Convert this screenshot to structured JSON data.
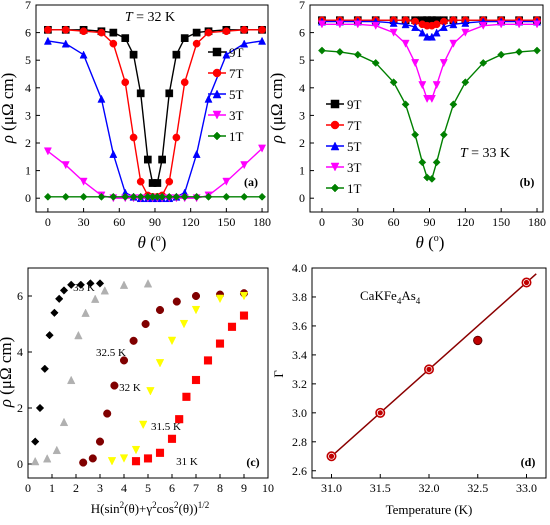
{
  "colors": {
    "9T": "#000000",
    "7T": "#ff0000",
    "5T": "#0000ff",
    "3T": "#ff00ff",
    "1T": "#008000",
    "fit_line": "#8b0000",
    "gamma_points": "#c00000"
  },
  "chart_data": [
    {
      "panel": "(a)",
      "type": "line",
      "title": "T = 32 K",
      "xlabel": "θ (o)",
      "ylabel": "ρ (μΩ cm)",
      "xlim": [
        -10,
        185
      ],
      "ylim": [
        -0.5,
        7
      ],
      "xticks": [
        "0",
        "30",
        "60",
        "90",
        "120",
        "150",
        "180"
      ],
      "yticks": [
        "0",
        "1",
        "2",
        "3",
        "4",
        "5",
        "6",
        "7"
      ],
      "legend_position": "right",
      "x": [
        0,
        15,
        30,
        45,
        55,
        65,
        72,
        78,
        84,
        88,
        92,
        96,
        102,
        108,
        115,
        125,
        135,
        150,
        165,
        180
      ],
      "series": [
        {
          "name": "9T",
          "marker": "square",
          "values": [
            6.1,
            6.1,
            6.1,
            6.05,
            6.0,
            5.8,
            5.2,
            3.8,
            1.4,
            0.55,
            0.55,
            1.4,
            3.8,
            5.2,
            5.8,
            6.0,
            6.05,
            6.1,
            6.1,
            6.1
          ]
        },
        {
          "name": "7T",
          "marker": "circle",
          "values": [
            6.1,
            6.1,
            6.05,
            6.0,
            5.6,
            4.2,
            2.2,
            0.6,
            0.1,
            0.05,
            0.05,
            0.1,
            0.6,
            2.2,
            4.2,
            5.6,
            6.0,
            6.05,
            6.1,
            6.1
          ]
        },
        {
          "name": "5T",
          "marker": "triangle-up",
          "values": [
            5.7,
            5.6,
            5.2,
            3.6,
            1.6,
            0.2,
            0.05,
            0.0,
            0.0,
            0.0,
            0.0,
            0.0,
            0.0,
            0.05,
            0.2,
            1.6,
            3.6,
            5.2,
            5.6,
            5.7
          ]
        },
        {
          "name": "3T",
          "marker": "triangle-down",
          "values": [
            1.7,
            1.2,
            0.6,
            0.1,
            0.0,
            0.0,
            0.0,
            0.0,
            0.0,
            0.0,
            0.0,
            0.0,
            0.0,
            0.0,
            0.0,
            0.0,
            0.1,
            0.6,
            1.2,
            1.8
          ]
        },
        {
          "name": "1T",
          "marker": "diamond",
          "values": [
            0.05,
            0.05,
            0.05,
            0.05,
            0.05,
            0.05,
            0.05,
            0.05,
            0.05,
            0.05,
            0.05,
            0.05,
            0.05,
            0.05,
            0.05,
            0.05,
            0.05,
            0.05,
            0.05,
            0.05
          ]
        }
      ]
    },
    {
      "panel": "(b)",
      "type": "line",
      "title": "T = 33 K",
      "xlabel": "θ (o)",
      "ylabel": "ρ (μΩ cm)",
      "xlim": [
        -10,
        185
      ],
      "ylim": [
        -0.5,
        7
      ],
      "xticks": [
        "0",
        "30",
        "60",
        "90",
        "120",
        "150",
        "180"
      ],
      "yticks": [
        "0",
        "1",
        "2",
        "3",
        "4",
        "5",
        "6",
        "7"
      ],
      "legend_position": "left",
      "x": [
        0,
        15,
        30,
        45,
        60,
        70,
        78,
        84,
        88,
        92,
        96,
        102,
        110,
        120,
        135,
        150,
        165,
        180
      ],
      "series": [
        {
          "name": "9T",
          "marker": "square",
          "values": [
            6.45,
            6.45,
            6.45,
            6.45,
            6.45,
            6.45,
            6.45,
            6.45,
            6.45,
            6.45,
            6.45,
            6.45,
            6.45,
            6.45,
            6.45,
            6.45,
            6.45,
            6.45
          ]
        },
        {
          "name": "7T",
          "marker": "circle",
          "values": [
            6.45,
            6.45,
            6.45,
            6.45,
            6.45,
            6.45,
            6.4,
            6.3,
            6.25,
            6.25,
            6.3,
            6.4,
            6.45,
            6.45,
            6.45,
            6.45,
            6.45,
            6.45
          ]
        },
        {
          "name": "5T",
          "marker": "triangle-up",
          "values": [
            6.4,
            6.4,
            6.4,
            6.4,
            6.35,
            6.3,
            6.2,
            6.0,
            5.85,
            5.85,
            6.0,
            6.2,
            6.3,
            6.35,
            6.4,
            6.4,
            6.4,
            6.4
          ]
        },
        {
          "name": "3T",
          "marker": "triangle-down",
          "values": [
            6.3,
            6.3,
            6.3,
            6.25,
            6.0,
            5.6,
            4.9,
            4.1,
            3.6,
            3.6,
            4.1,
            4.9,
            5.6,
            6.0,
            6.25,
            6.3,
            6.3,
            6.3
          ]
        },
        {
          "name": "1T",
          "marker": "diamond",
          "values": [
            5.35,
            5.3,
            5.2,
            4.9,
            4.2,
            3.4,
            2.3,
            1.3,
            0.75,
            0.7,
            1.3,
            2.3,
            3.4,
            4.2,
            4.9,
            5.2,
            5.3,
            5.35
          ]
        }
      ]
    },
    {
      "panel": "(c)",
      "type": "scatter",
      "xlabel": "H(sin2(θ)+γ2cos2(θ))1/2",
      "ylabel": "ρ (μΩ cm)",
      "xlim": [
        0,
        10
      ],
      "ylim": [
        -0.5,
        7
      ],
      "xticks": [
        "0",
        "1",
        "2",
        "3",
        "4",
        "5",
        "6",
        "7",
        "8",
        "9",
        "10"
      ],
      "yticks": [
        "0",
        "2",
        "4",
        "6"
      ],
      "annotations": [
        "33 K",
        "32.5 K",
        "32 K",
        "31.5 K",
        "31 K"
      ],
      "series": [
        {
          "name": "33 K",
          "color": "#000000",
          "x": [
            0.3,
            0.5,
            0.7,
            0.9,
            1.1,
            1.3,
            1.5,
            1.8,
            2.2,
            2.6,
            3.0
          ],
          "y": [
            0.8,
            2.0,
            3.4,
            4.6,
            5.4,
            5.9,
            6.2,
            6.4,
            6.4,
            6.45,
            6.45
          ]
        },
        {
          "name": "32.5 K",
          "color": "#b0b0b0",
          "x": [
            0.3,
            0.8,
            1.2,
            1.5,
            1.8,
            2.1,
            2.4,
            2.8,
            3.2,
            4.0,
            5.0
          ],
          "y": [
            0.1,
            0.2,
            0.5,
            1.5,
            3.0,
            4.6,
            5.4,
            5.9,
            6.2,
            6.4,
            6.45
          ]
        },
        {
          "name": "32 K",
          "color": "#800000",
          "x": [
            2.3,
            2.7,
            3.0,
            3.3,
            3.6,
            4.0,
            4.4,
            4.9,
            5.5,
            6.2,
            7.0,
            8.0,
            9.0
          ],
          "y": [
            0.05,
            0.2,
            0.8,
            1.8,
            2.8,
            3.7,
            4.4,
            5.0,
            5.5,
            5.8,
            6.0,
            6.05,
            6.1
          ]
        },
        {
          "name": "31.5 K",
          "color": "#ffff00",
          "x": [
            3.5,
            4.0,
            4.5,
            4.8,
            5.1,
            5.5,
            6.0,
            6.5,
            7.0,
            8.0,
            9.0
          ],
          "y": [
            0.1,
            0.2,
            0.5,
            1.4,
            2.6,
            3.6,
            4.4,
            5.0,
            5.5,
            5.9,
            6.0
          ]
        },
        {
          "name": "31 K",
          "color": "#ff0000",
          "x": [
            4.5,
            5.0,
            5.5,
            6.0,
            6.3,
            6.6,
            7.0,
            7.5,
            8.0,
            8.5,
            9.0
          ],
          "y": [
            0.1,
            0.2,
            0.4,
            0.9,
            1.6,
            2.4,
            3.0,
            3.7,
            4.3,
            4.9,
            5.3
          ]
        }
      ]
    },
    {
      "panel": "(d)",
      "type": "scatter",
      "annotation": "CaKFe4As4",
      "xlabel": "Temperature (K)",
      "ylabel": "Γ",
      "xlim": [
        30.8,
        33.2
      ],
      "ylim": [
        2.55,
        4.0
      ],
      "xticks": [
        "31.0",
        "31.5",
        "32.0",
        "32.5",
        "33.0"
      ],
      "yticks": [
        "2.6",
        "2.8",
        "3.0",
        "3.2",
        "3.4",
        "3.6",
        "3.8",
        "4.0"
      ],
      "series": [
        {
          "name": "open circles",
          "x": [
            31.0,
            31.5,
            32.0,
            33.0
          ],
          "y": [
            2.7,
            3.0,
            3.3,
            3.9
          ]
        },
        {
          "name": "filled circle",
          "x": [
            32.5
          ],
          "y": [
            3.5
          ]
        }
      ],
      "fit_line": {
        "x": [
          31.0,
          33.1
        ],
        "y": [
          2.7,
          3.96
        ]
      }
    }
  ]
}
